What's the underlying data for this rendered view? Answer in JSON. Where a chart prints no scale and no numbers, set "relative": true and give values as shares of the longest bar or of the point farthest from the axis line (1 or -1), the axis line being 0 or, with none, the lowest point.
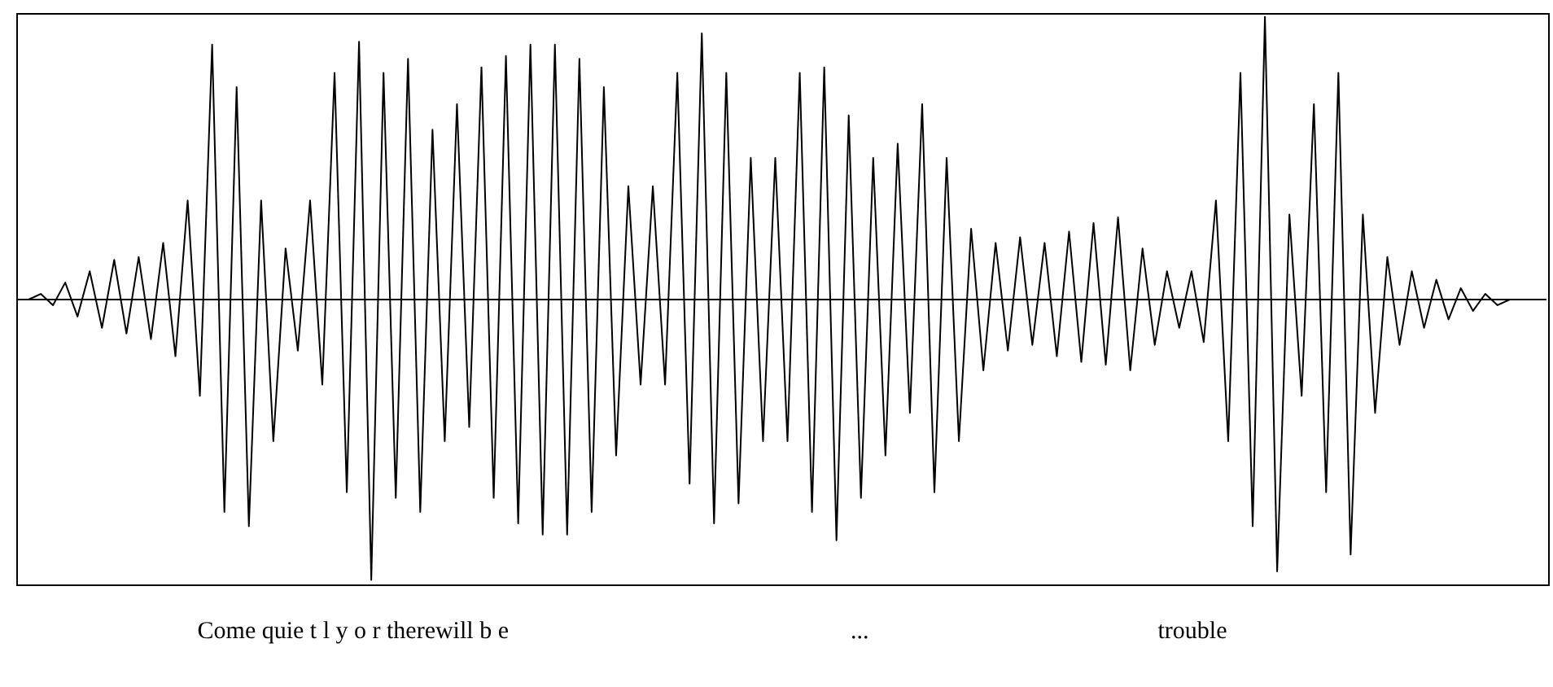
{
  "chart_data": {
    "type": "line",
    "relative": true,
    "color": "#000000",
    "marker": "none",
    "grid": false,
    "legend": false,
    "annotations": [
      "Come quie t l y o r therewill b e",
      "...",
      "trouble"
    ],
    "categories": [
      null,
      null,
      null,
      null,
      null,
      null,
      null,
      null,
      null,
      null,
      null,
      null,
      null,
      null,
      null,
      null,
      null,
      null,
      null,
      null,
      null,
      null,
      null,
      null,
      null,
      null,
      null,
      null,
      null,
      null,
      null,
      null,
      null,
      null,
      null,
      null,
      null,
      null,
      null,
      null,
      null,
      null,
      null,
      null,
      null,
      null,
      null,
      null,
      null,
      null,
      null,
      null,
      null,
      null,
      null,
      null,
      null,
      null,
      null,
      null,
      null,
      null,
      null,
      null,
      null,
      null,
      null,
      null,
      null,
      null,
      null,
      null,
      null,
      null,
      null,
      null,
      null,
      null,
      null,
      null,
      null,
      null,
      null,
      null,
      null,
      null,
      null,
      null,
      null,
      null,
      null,
      null,
      null,
      null,
      null,
      null,
      null,
      null,
      null,
      null,
      null,
      null,
      null,
      null,
      null,
      null,
      null,
      null,
      null,
      null,
      null,
      null,
      null,
      null,
      null,
      null,
      null,
      null,
      null,
      null,
      null,
      null,
      null,
      null,
      null,
      null
    ],
    "values": [
      0,
      0,
      0.02,
      -0.02,
      0.06,
      -0.06,
      0.1,
      -0.1,
      0.14,
      -0.12,
      0.15,
      -0.14,
      0.2,
      -0.2,
      0.35,
      -0.34,
      0.9,
      -0.75,
      0.75,
      -0.8,
      0.35,
      -0.5,
      0.18,
      -0.18,
      0.35,
      -0.3,
      0.8,
      -0.68,
      0.91,
      -0.99,
      0.8,
      -0.7,
      0.85,
      -0.75,
      0.6,
      -0.5,
      0.69,
      -0.45,
      0.82,
      -0.7,
      0.86,
      -0.79,
      0.9,
      -0.83,
      0.9,
      -0.83,
      0.85,
      -0.75,
      0.75,
      -0.55,
      0.4,
      -0.3,
      0.4,
      -0.3,
      0.8,
      -0.65,
      0.94,
      -0.79,
      0.8,
      -0.72,
      0.5,
      -0.5,
      0.5,
      -0.5,
      0.8,
      -0.75,
      0.82,
      -0.85,
      0.65,
      -0.7,
      0.5,
      -0.55,
      0.55,
      -0.4,
      0.69,
      -0.68,
      0.5,
      -0.5,
      0.25,
      -0.25,
      0.2,
      -0.18,
      0.22,
      -0.16,
      0.2,
      -0.2,
      0.24,
      -0.22,
      0.27,
      -0.23,
      0.29,
      -0.25,
      0.18,
      -0.16,
      0.1,
      -0.1,
      0.1,
      -0.15,
      0.35,
      -0.5,
      0.8,
      -0.8,
      1,
      -0.96,
      0.3,
      -0.34,
      0.69,
      -0.68,
      0.8,
      -0.9,
      0.3,
      -0.4,
      0.15,
      -0.16,
      0.1,
      -0.1,
      0.07,
      -0.07,
      0.04,
      -0.04,
      0.02,
      -0.02,
      0,
      0,
      0,
      0
    ]
  }
}
